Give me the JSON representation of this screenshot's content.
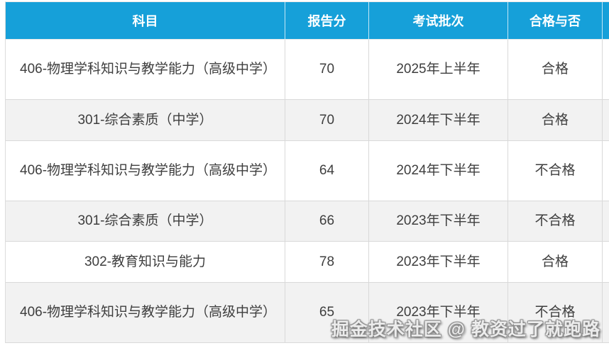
{
  "colors": {
    "header_bg": "#16a0d9",
    "header_text": "#ffffff",
    "row_alt_bg": "#f2f2f2",
    "border": "#d9d9d9",
    "cell_text": "#3e3e3e"
  },
  "table": {
    "columns": [
      {
        "label": "科目"
      },
      {
        "label": "报告分"
      },
      {
        "label": "考试批次"
      },
      {
        "label": "合格与否"
      }
    ],
    "rows": [
      {
        "subject": "406-物理学科知识与教学能力（高级中学）",
        "score": "70",
        "batch": "2025年上半年",
        "result": "合格"
      },
      {
        "subject": "301-综合素质（中学）",
        "score": "70",
        "batch": "2024年下半年",
        "result": "合格"
      },
      {
        "subject": "406-物理学科知识与教学能力（高级中学）",
        "score": "64",
        "batch": "2024年下半年",
        "result": "不合格"
      },
      {
        "subject": "301-综合素质（中学）",
        "score": "66",
        "batch": "2023年下半年",
        "result": "不合格"
      },
      {
        "subject": "302-教育知识与能力",
        "score": "78",
        "batch": "2023年下半年",
        "result": "合格"
      },
      {
        "subject": "406-物理学科知识与教学能力（高级中学）",
        "score": "65",
        "batch": "2023年下半年",
        "result": "不合格"
      }
    ]
  },
  "watermark": {
    "text": "掘金技术社区 @ 教资过了就跑路"
  }
}
